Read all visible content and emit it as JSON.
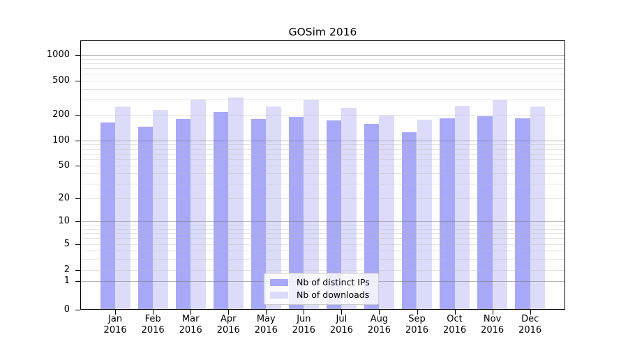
{
  "chart_data": {
    "type": "bar",
    "title": "GOSim 2016",
    "year_label": "2016",
    "categories": [
      "Jan",
      "Feb",
      "Mar",
      "Apr",
      "May",
      "Jun",
      "Jul",
      "Aug",
      "Sep",
      "Oct",
      "Nov",
      "Dec"
    ],
    "series": [
      {
        "name": "Nb of distinct IPs",
        "color": "#a8a8f8",
        "values": [
          163,
          146,
          180,
          216,
          178,
          190,
          173,
          158,
          126,
          181,
          193,
          183
        ]
      },
      {
        "name": "Nb of downloads",
        "color": "#dcdcfa",
        "values": [
          250,
          228,
          300,
          322,
          250,
          297,
          240,
          198,
          177,
          255,
          295,
          250
        ]
      }
    ],
    "xlabel": "",
    "ylabel": "",
    "y_scale": "log-with-zero-baseline",
    "y_ticks": [
      1000,
      500,
      200,
      100,
      50,
      20,
      10,
      5,
      2,
      1,
      0
    ],
    "ylim": [
      0,
      1500
    ],
    "grid": true,
    "legend_position": "lower center",
    "colors": {
      "background": "#ffffff",
      "gridline_major": "#b0b0b0",
      "gridline_minor": "#e4e4e4",
      "axis": "#000000",
      "text": "#000000"
    }
  }
}
